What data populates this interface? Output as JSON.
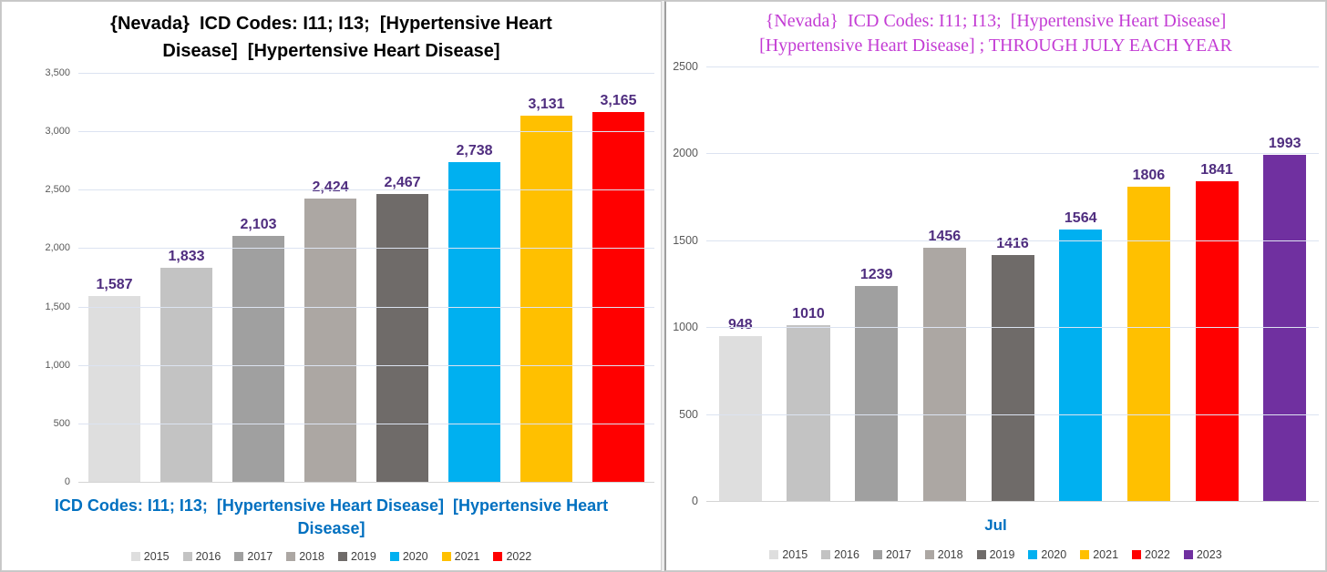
{
  "chart_data": [
    {
      "type": "bar",
      "panel": "left",
      "title": "{Nevada}  ICD Codes: I11; I13;  [Hypertensive Heart\nDisease]  [Hypertensive Heart Disease]",
      "title_color": "#000000",
      "categories": [
        "2015",
        "2016",
        "2017",
        "2018",
        "2019",
        "2020",
        "2021",
        "2022"
      ],
      "values": [
        1587,
        1833,
        2103,
        2424,
        2467,
        2738,
        3131,
        3165
      ],
      "value_labels": [
        "1,587",
        "1,833",
        "2,103",
        "2,424",
        "2,467",
        "2,738",
        "3,131",
        "3,165"
      ],
      "value_label_color": "#4F2D7F",
      "bar_colors": [
        "#DEDEDE",
        "#C3C3C3",
        "#A0A0A0",
        "#ACA7A3",
        "#6F6B69",
        "#00B0F0",
        "#FFC000",
        "#FF0000"
      ],
      "xlabel": "ICD Codes: I11; I13;  [Hypertensive Heart Disease]  [Hypertensive Heart\nDisease]",
      "xlabel_color": "#0070C0",
      "ylim": [
        0,
        3500
      ],
      "yticks": [
        {
          "label": "0",
          "value": 0
        },
        {
          "label": "500",
          "value": 500
        },
        {
          "label": "1,000",
          "value": 1000
        },
        {
          "label": "1,500",
          "value": 1500
        },
        {
          "label": "2,000",
          "value": 2000
        },
        {
          "label": "2,500",
          "value": 2500
        },
        {
          "label": "3,000",
          "value": 3000
        },
        {
          "label": "3,500",
          "value": 3500
        }
      ],
      "legend": [
        "2015",
        "2016",
        "2017",
        "2018",
        "2019",
        "2020",
        "2021",
        "2022"
      ],
      "legend_position": "bottom",
      "grid": true
    },
    {
      "type": "bar",
      "panel": "right",
      "title": "{Nevada}  ICD Codes: I11; I13;  [Hypertensive Heart Disease]\n[Hypertensive Heart Disease] ; THROUGH JULY EACH YEAR",
      "title_color": "#C33CD4",
      "categories": [
        "2015",
        "2016",
        "2017",
        "2018",
        "2019",
        "2020",
        "2021",
        "2022",
        "2023"
      ],
      "values": [
        948,
        1010,
        1239,
        1456,
        1416,
        1564,
        1806,
        1841,
        1993
      ],
      "value_labels": [
        "948",
        "1010",
        "1239",
        "1456",
        "1416",
        "1564",
        "1806",
        "1841",
        "1993"
      ],
      "value_label_color": "#4F2D7F",
      "bar_colors": [
        "#DEDEDE",
        "#C3C3C3",
        "#A0A0A0",
        "#ACA7A3",
        "#6F6B69",
        "#00B0F0",
        "#FFC000",
        "#FF0000",
        "#7030A0"
      ],
      "xlabel": "Jul",
      "xlabel_color": "#0070C0",
      "ylim": [
        0,
        2500
      ],
      "yticks": [
        {
          "label": "0",
          "value": 0
        },
        {
          "label": "500",
          "value": 500
        },
        {
          "label": "1000",
          "value": 1000
        },
        {
          "label": "1500",
          "value": 1500
        },
        {
          "label": "2000",
          "value": 2000
        },
        {
          "label": "2500",
          "value": 2500
        }
      ],
      "legend": [
        "2015",
        "2016",
        "2017",
        "2018",
        "2019",
        "2020",
        "2021",
        "2022",
        "2023"
      ],
      "legend_position": "bottom",
      "grid": true
    }
  ]
}
